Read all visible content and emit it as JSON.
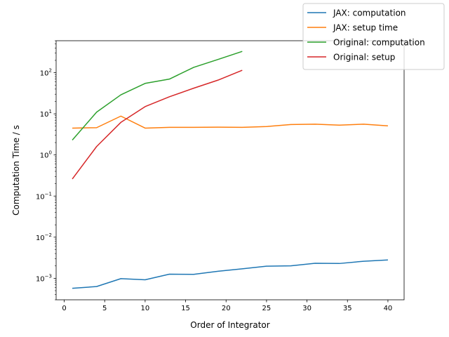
{
  "chart_data": {
    "type": "line",
    "title": "",
    "xlabel": "Order of Integrator",
    "ylabel": "Computation Time / s",
    "xlim": [
      -1,
      42
    ],
    "ylim": [
      0.0003,
      600
    ],
    "yscale": "log",
    "grid": false,
    "legend_position": "top-right",
    "x_ticks": [
      0,
      5,
      10,
      15,
      20,
      25,
      30,
      35,
      40
    ],
    "y_ticks": [
      {
        "value": 0.001,
        "base": "10",
        "exp": "−3"
      },
      {
        "value": 0.01,
        "base": "10",
        "exp": "−2"
      },
      {
        "value": 0.1,
        "base": "10",
        "exp": "−1"
      },
      {
        "value": 1,
        "base": "10",
        "exp": "0"
      },
      {
        "value": 10,
        "base": "10",
        "exp": "1"
      },
      {
        "value": 100,
        "base": "10",
        "exp": "2"
      }
    ],
    "series": [
      {
        "name": "JAX: computation",
        "color": "#1f77b4",
        "x": [
          1,
          4,
          7,
          10,
          13,
          16,
          19,
          22,
          25,
          28,
          31,
          34,
          37,
          40
        ],
        "y": [
          0.00057,
          0.00063,
          0.00098,
          0.00092,
          0.00126,
          0.00125,
          0.00148,
          0.0017,
          0.00197,
          0.00201,
          0.00232,
          0.00229,
          0.0026,
          0.0028
        ]
      },
      {
        "name": "JAX: setup time",
        "color": "#ff7f0e",
        "x": [
          1,
          4,
          7,
          10,
          13,
          16,
          19,
          22,
          25,
          28,
          31,
          34,
          37,
          40
        ],
        "y": [
          4.5,
          4.6,
          8.8,
          4.5,
          4.7,
          4.7,
          4.75,
          4.7,
          4.9,
          5.5,
          5.6,
          5.3,
          5.6,
          5.1
        ]
      },
      {
        "name": "Original: computation",
        "color": "#2ca02c",
        "x": [
          1,
          4,
          7,
          10,
          13,
          16,
          19,
          22
        ],
        "y": [
          2.3,
          11,
          29,
          55,
          70,
          135,
          210,
          330
        ]
      },
      {
        "name": "Original: setup",
        "color": "#d62728",
        "x": [
          1,
          4,
          7,
          10,
          13,
          16,
          19,
          22
        ],
        "y": [
          0.26,
          1.6,
          6.2,
          15,
          26,
          42,
          66,
          115
        ]
      }
    ]
  }
}
